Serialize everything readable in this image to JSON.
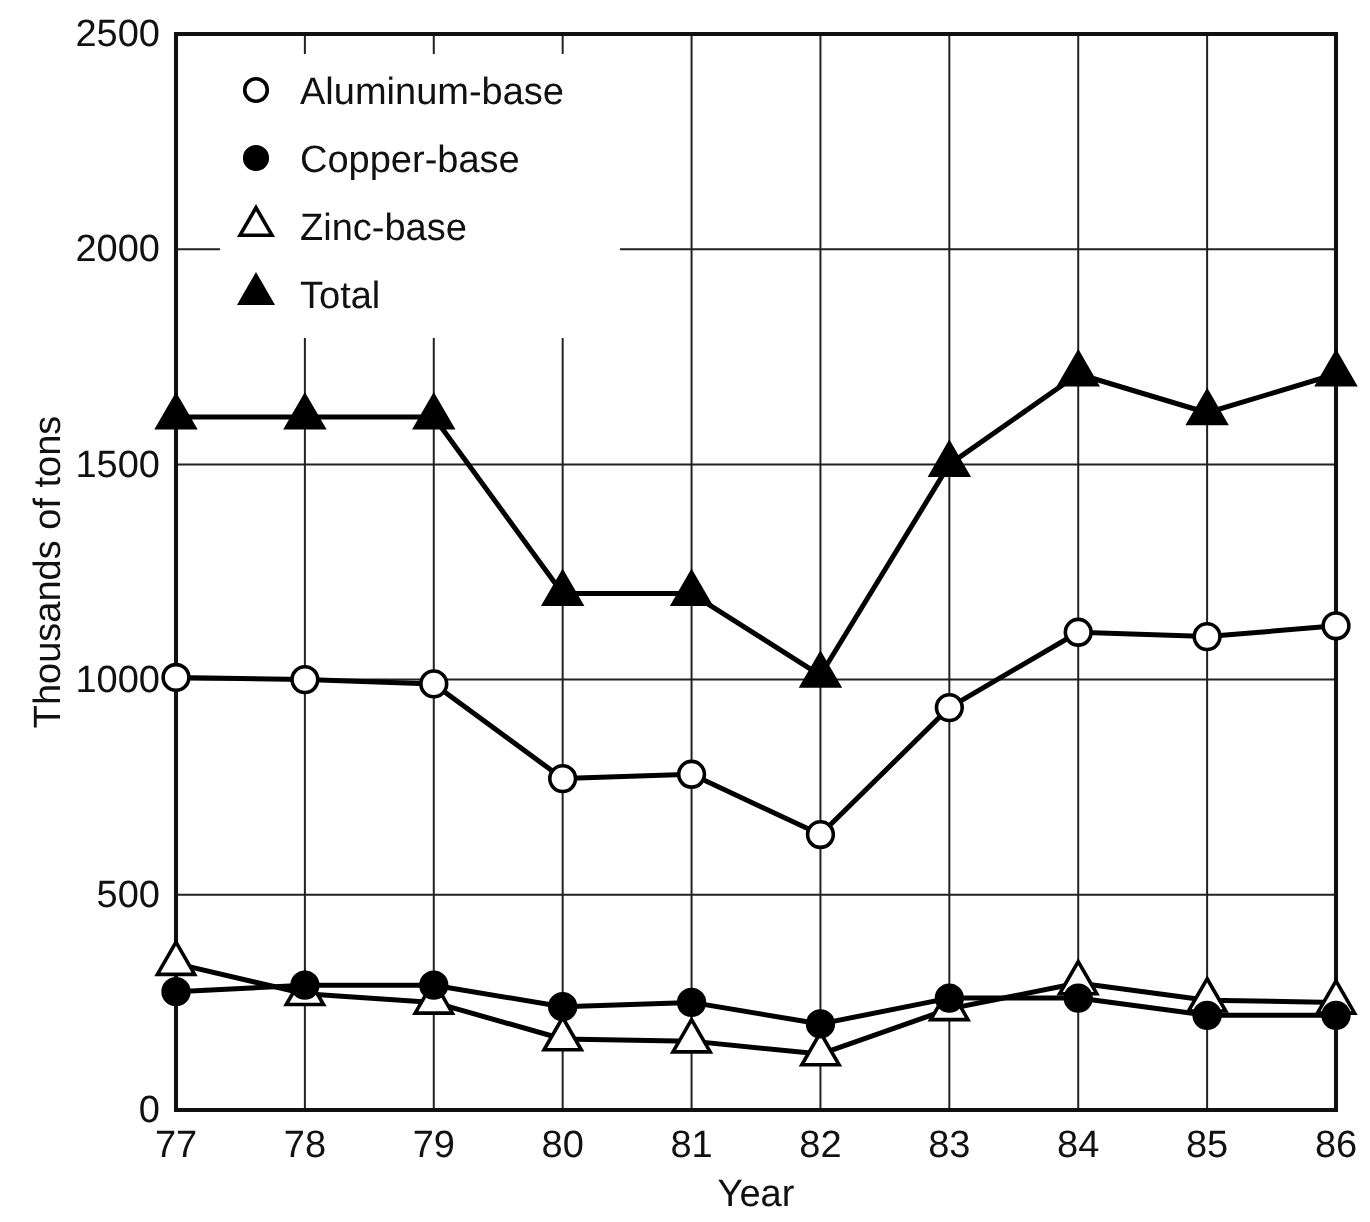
{
  "chart_data": {
    "type": "line",
    "xlabel": "Year",
    "ylabel": "Thousands of tons",
    "x": [
      77,
      78,
      79,
      80,
      81,
      82,
      83,
      84,
      85,
      86
    ],
    "xlim": [
      77,
      86
    ],
    "xticks": [
      77,
      78,
      79,
      80,
      81,
      82,
      83,
      84,
      85,
      86
    ],
    "ylim": [
      0,
      2500
    ],
    "yticks": [
      0,
      500,
      1000,
      1500,
      2000,
      2500
    ],
    "grid": true,
    "legend": "top left",
    "line_style": "solid",
    "series": [
      {
        "name": "Aluminum-base",
        "color": "#000000",
        "marker": "circle",
        "colors": [
          "#ffffff",
          "#ffffff",
          "#ffffff",
          "#ffffff",
          "#ffffff",
          "#ffffff",
          "#ffffff",
          "#ffffff",
          "#ffffff",
          "#ffffff"
        ],
        "values": [
          1005,
          1000,
          990,
          770,
          780,
          640,
          935,
          1110,
          1100,
          1125
        ]
      },
      {
        "name": "Copper-base",
        "color": "#000000",
        "marker": "circle",
        "values": [
          275,
          290,
          290,
          240,
          250,
          200,
          260,
          260,
          220,
          220
        ]
      },
      {
        "name": "Zinc-base",
        "color": "#000000",
        "marker": "triangle",
        "colors": [
          "#ffffff",
          "#ffffff",
          "#ffffff",
          "#ffffff",
          "#ffffff",
          "#ffffff",
          "#ffffff",
          "#ffffff",
          "#ffffff",
          "#ffffff"
        ],
        "values": [
          340,
          270,
          250,
          165,
          160,
          130,
          235,
          295,
          255,
          250
        ]
      },
      {
        "name": "Total",
        "color": "#000000",
        "marker": "triangle",
        "values": [
          1610,
          1610,
          1610,
          1200,
          1200,
          1010,
          1500,
          1710,
          1620,
          1710
        ]
      }
    ]
  }
}
